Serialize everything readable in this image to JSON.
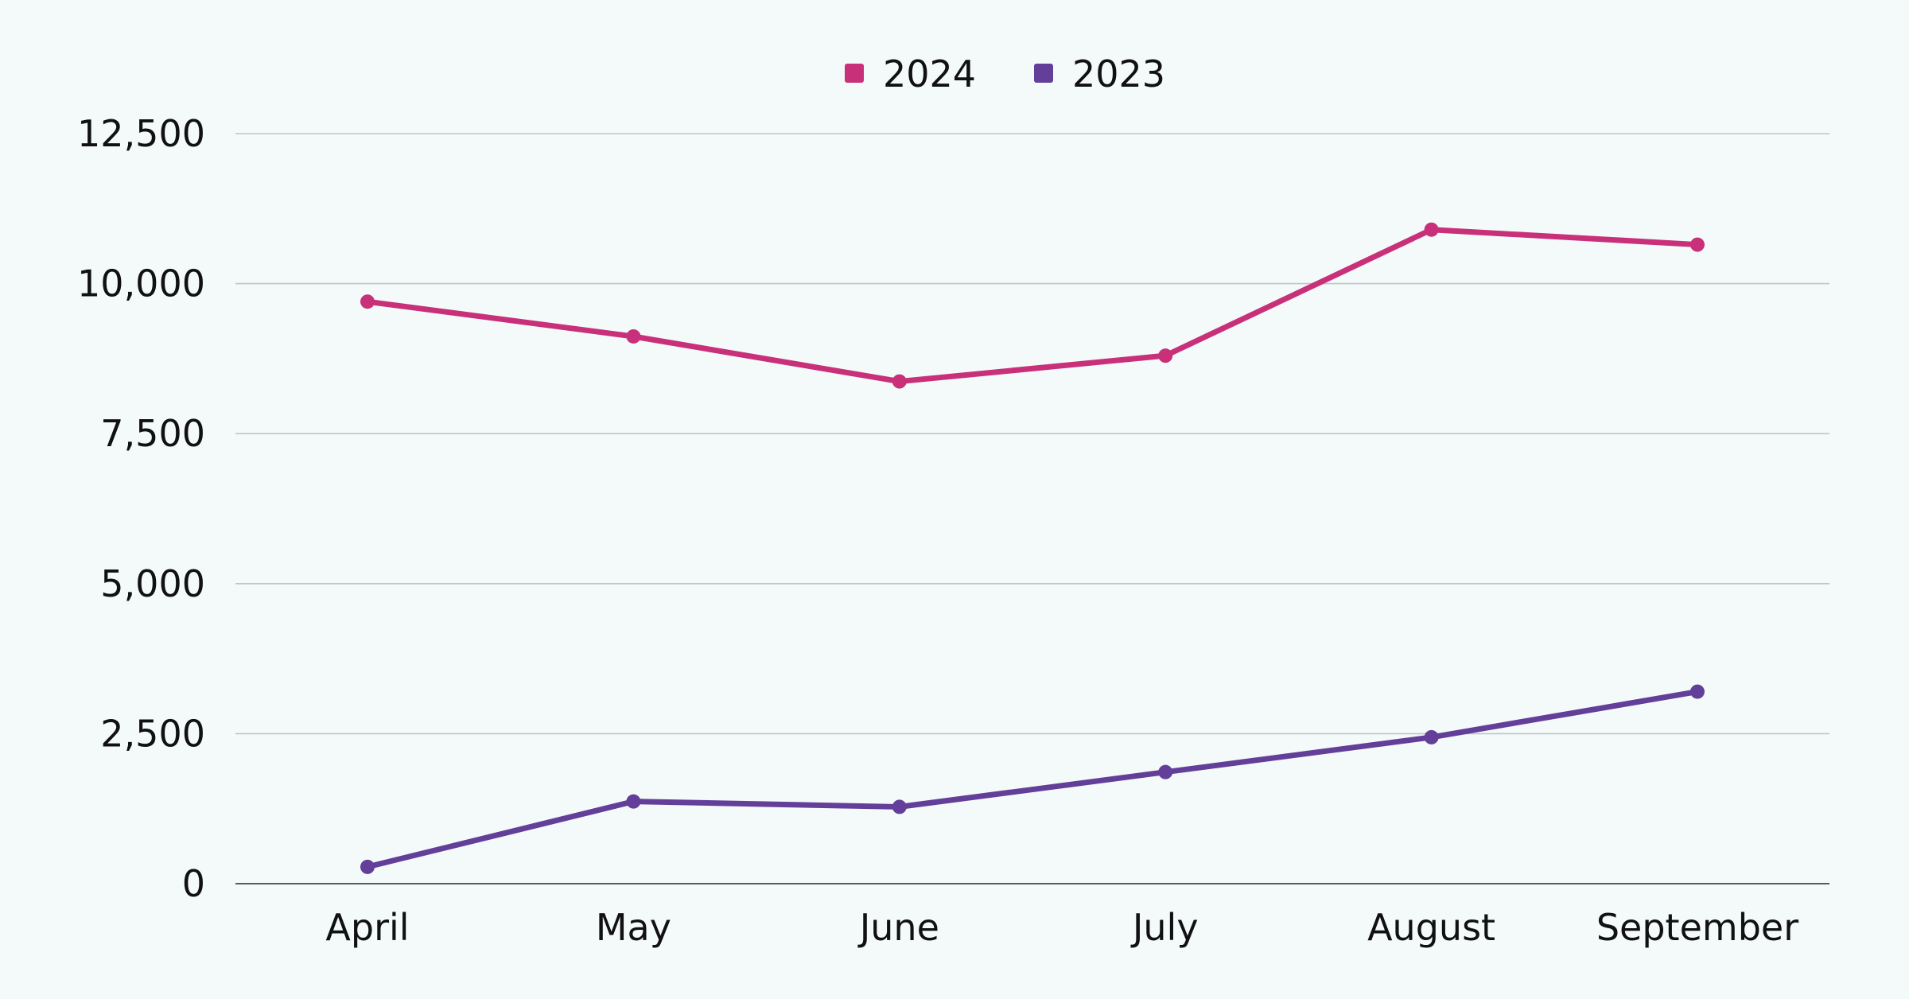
{
  "chart_data": {
    "type": "line",
    "categories": [
      "April",
      "May",
      "June",
      "July",
      "August",
      "September"
    ],
    "series": [
      {
        "name": "2024",
        "color": "#c9307a",
        "values": [
          9700,
          9120,
          8370,
          8800,
          10900,
          10650
        ]
      },
      {
        "name": "2023",
        "color": "#633f99",
        "values": [
          280,
          1370,
          1280,
          1860,
          2440,
          3200
        ]
      }
    ],
    "yticks": [
      "0",
      "2,500",
      "5,000",
      "7,500",
      "10,000",
      "12,500"
    ],
    "ylim": [
      0,
      12500
    ],
    "grid": true,
    "legend_position": "top-center",
    "colors": {
      "background": "#f4fafa",
      "grid": "#bfc5c6",
      "axis": "#5a5a5a"
    }
  }
}
